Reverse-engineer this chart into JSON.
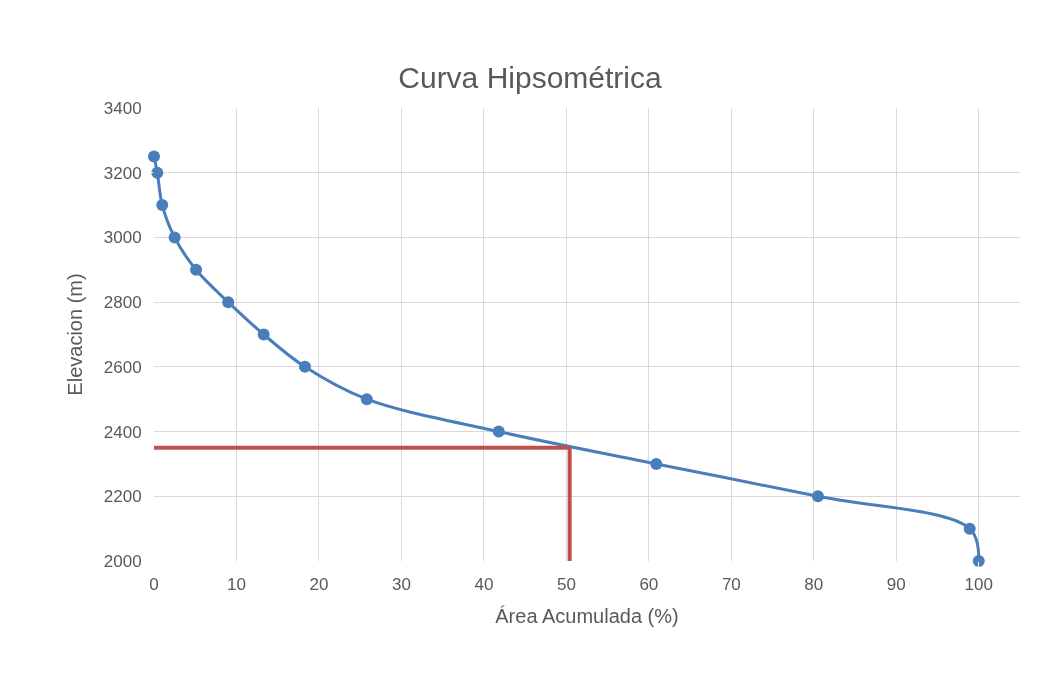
{
  "chart_data": {
    "type": "line",
    "title": "Curva Hipsométrica",
    "xlabel": "Área Acumulada (%)",
    "ylabel": "Elevacion (m)",
    "x": [
      0,
      0.4,
      1.0,
      2.5,
      5.1,
      9.0,
      13.3,
      18.3,
      25.8,
      41.8,
      60.9,
      80.5,
      98.9,
      100
    ],
    "series": [
      {
        "color": "#4a7ebb",
        "values": [
          3250,
          3200,
          3100,
          3000,
          2900,
          2800,
          2700,
          2600,
          2500,
          2400,
          2300,
          2200,
          2100,
          2000
        ]
      }
    ],
    "xlim": [
      0,
      105
    ],
    "xticks": [
      0,
      10,
      20,
      30,
      40,
      50,
      60,
      70,
      80,
      90,
      100
    ],
    "ylim": [
      2000,
      3400
    ],
    "yticks": [
      2000,
      2200,
      2400,
      2600,
      2800,
      3000,
      3200,
      3400
    ],
    "ref_lines": [
      {
        "axis": "y",
        "value": 2350,
        "color": "#c0504d"
      },
      {
        "axis": "x",
        "value": 50.4,
        "color": "#c0504d"
      }
    ],
    "grid": true,
    "marker": "circle",
    "line_style": "solid"
  }
}
